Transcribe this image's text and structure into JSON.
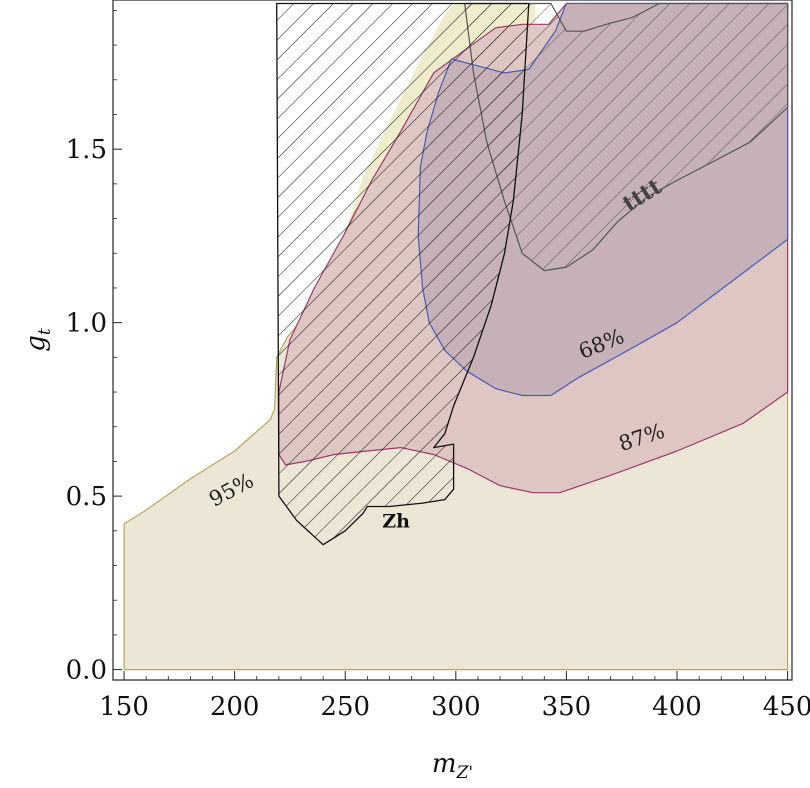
{
  "chart_data": {
    "type": "contour",
    "xlabel_main": "m",
    "xlabel_sub": "Z'",
    "ylabel_main": "g",
    "ylabel_sub": "t",
    "xlim": [
      145,
      452
    ],
    "ylim": [
      -0.03,
      1.93
    ],
    "xticks": [
      150,
      200,
      250,
      300,
      350,
      400,
      450
    ],
    "yticks": [
      0.0,
      0.5,
      1.0,
      1.5
    ],
    "ytick_labels": [
      "0.0",
      "0.5",
      "1.0",
      "1.5"
    ],
    "colors": {
      "c95_fill": "#ece6d6",
      "c95_edge": "#b8a65a",
      "c87_fill": "#dec6c2",
      "c87_edge": "#9a3b6a",
      "c68_fill": "#c6b1b8",
      "c68_edge": "#4a5ab8",
      "topband_fill": "#eeeccb",
      "zh_edge": "#111111",
      "tttt_edge": "#555555"
    },
    "regions": [
      {
        "id": "c95",
        "label": "95%",
        "label_pos": [
          200,
          0.5
        ],
        "label_rotate": -28,
        "points": [
          [
            150,
            0.0
          ],
          [
            450,
            0.0
          ],
          [
            450,
            1.92
          ],
          [
            360,
            1.92
          ],
          [
            350,
            1.81
          ],
          [
            340,
            1.76
          ],
          [
            330,
            1.74
          ],
          [
            310,
            1.7
          ],
          [
            300,
            1.65
          ],
          [
            290,
            1.6
          ],
          [
            280,
            1.52
          ],
          [
            270,
            1.43
          ],
          [
            262,
            1.38
          ],
          [
            255,
            1.33
          ],
          [
            247,
            1.22
          ],
          [
            240,
            1.1
          ],
          [
            232,
            1.02
          ],
          [
            224,
            0.96
          ],
          [
            219,
            0.9
          ],
          [
            218,
            0.75
          ],
          [
            216,
            0.72
          ],
          [
            200,
            0.63
          ],
          [
            180,
            0.55
          ],
          [
            160,
            0.46
          ],
          [
            150,
            0.42
          ]
        ]
      },
      {
        "id": "topband",
        "label": "",
        "points": [
          [
            300,
            1.92
          ],
          [
            336,
            1.92
          ],
          [
            336,
            1.8
          ],
          [
            330,
            1.76
          ],
          [
            310,
            1.7
          ],
          [
            300,
            1.65
          ],
          [
            290,
            1.6
          ],
          [
            280,
            1.52
          ],
          [
            270,
            1.43
          ],
          [
            262,
            1.38
          ],
          [
            255,
            1.33
          ],
          [
            252,
            1.3
          ],
          [
            258,
            1.42
          ],
          [
            270,
            1.58
          ],
          [
            285,
            1.77
          ],
          [
            296,
            1.9
          ]
        ]
      },
      {
        "id": "c87",
        "label": "87%",
        "label_pos": [
          385,
          0.65
        ],
        "label_rotate": -18,
        "points": [
          [
            220,
            0.62
          ],
          [
            223,
            0.59
          ],
          [
            232,
            0.6
          ],
          [
            245,
            0.62
          ],
          [
            260,
            0.63
          ],
          [
            275,
            0.64
          ],
          [
            290,
            0.62
          ],
          [
            305,
            0.58
          ],
          [
            320,
            0.53
          ],
          [
            335,
            0.51
          ],
          [
            347,
            0.51
          ],
          [
            370,
            0.56
          ],
          [
            400,
            0.63
          ],
          [
            430,
            0.71
          ],
          [
            450,
            0.8
          ],
          [
            450,
            1.92
          ],
          [
            350,
            1.92
          ],
          [
            342,
            1.86
          ],
          [
            330,
            1.86
          ],
          [
            318,
            1.85
          ],
          [
            305,
            1.79
          ],
          [
            290,
            1.72
          ],
          [
            275,
            1.55
          ],
          [
            262,
            1.41
          ],
          [
            250,
            1.26
          ],
          [
            236,
            1.1
          ],
          [
            225,
            0.95
          ],
          [
            220,
            0.8
          ]
        ]
      },
      {
        "id": "c68",
        "label": "68%",
        "label_pos": [
          367,
          0.92
        ],
        "label_rotate": -22,
        "points": [
          [
            283,
            1.25
          ],
          [
            285,
            1.1
          ],
          [
            288,
            1.0
          ],
          [
            295,
            0.92
          ],
          [
            305,
            0.86
          ],
          [
            318,
            0.81
          ],
          [
            330,
            0.79
          ],
          [
            343,
            0.79
          ],
          [
            355,
            0.84
          ],
          [
            375,
            0.91
          ],
          [
            400,
            1.0
          ],
          [
            425,
            1.12
          ],
          [
            450,
            1.24
          ],
          [
            450,
            1.92
          ],
          [
            350,
            1.92
          ],
          [
            345,
            1.84
          ],
          [
            333,
            1.73
          ],
          [
            322,
            1.72
          ],
          [
            310,
            1.74
          ],
          [
            298,
            1.76
          ],
          [
            292,
            1.66
          ],
          [
            287,
            1.55
          ],
          [
            284,
            1.45
          ]
        ]
      },
      {
        "id": "tttt",
        "label": "tttt",
        "label_pos": [
          386,
          1.35
        ],
        "label_rotate": -32,
        "points": [
          [
            304,
            1.92
          ],
          [
            343,
            1.92
          ],
          [
            350,
            1.84
          ],
          [
            358,
            1.84
          ],
          [
            368,
            1.86
          ],
          [
            380,
            1.88
          ],
          [
            392,
            1.92
          ],
          [
            450,
            1.92
          ],
          [
            450,
            1.62
          ],
          [
            433,
            1.52
          ],
          [
            415,
            1.46
          ],
          [
            400,
            1.41
          ],
          [
            386,
            1.36
          ],
          [
            373,
            1.29
          ],
          [
            362,
            1.21
          ],
          [
            350,
            1.16
          ],
          [
            340,
            1.15
          ],
          [
            330,
            1.2
          ],
          [
            322,
            1.35
          ],
          [
            314,
            1.52
          ],
          [
            308,
            1.72
          ]
        ]
      },
      {
        "id": "zh",
        "label": "Zh",
        "label_pos": [
          273,
          0.41
        ],
        "label_rotate": 0,
        "points": [
          [
            219,
            1.92
          ],
          [
            333,
            1.92
          ],
          [
            330,
            1.6
          ],
          [
            326,
            1.35
          ],
          [
            322,
            1.2
          ],
          [
            316,
            1.05
          ],
          [
            308,
            0.9
          ],
          [
            299,
            0.76
          ],
          [
            295,
            0.68
          ],
          [
            290,
            0.64
          ],
          [
            299,
            0.65
          ],
          [
            299,
            0.52
          ],
          [
            295,
            0.49
          ],
          [
            285,
            0.48
          ],
          [
            270,
            0.47
          ],
          [
            260,
            0.47
          ],
          [
            258,
            0.45
          ],
          [
            250,
            0.4
          ],
          [
            240,
            0.36
          ],
          [
            228,
            0.43
          ],
          [
            220,
            0.5
          ]
        ]
      }
    ]
  }
}
